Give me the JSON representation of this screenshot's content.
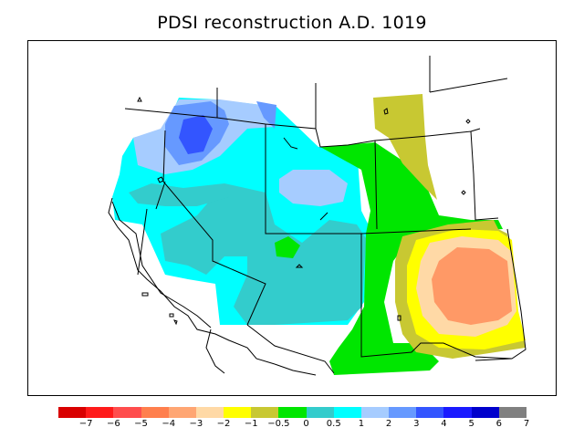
{
  "title": "PDSI reconstruction A.D. 1019",
  "colorbar": {
    "colors": [
      "#d90000",
      "#ff1a1a",
      "#ff4d4d",
      "#ff7f4d",
      "#ffa673",
      "#ffd9a6",
      "#ffff00",
      "#c8c832",
      "#00e600",
      "#33cccc",
      "#00ffff",
      "#a6ccff",
      "#6699ff",
      "#3355ff",
      "#1a1aff",
      "#0000cc",
      "#808080"
    ],
    "labels": [
      "−7",
      "−6",
      "−5",
      "−4",
      "−3",
      "−2",
      "−1",
      "−0.5",
      "0",
      "0.5",
      "1",
      "2",
      "3",
      "4",
      "5",
      "6",
      "7"
    ]
  },
  "map": {
    "colors": {
      "cyan": "#00ffff",
      "teal": "#33cccc",
      "green": "#00e600",
      "olive": "#c8c832",
      "yellow": "#ffff00",
      "peach": "#ffd9a6",
      "salmon": "#ffa673",
      "orange": "#ff9966",
      "lightblue": "#a6ccff",
      "medblue": "#6699ff",
      "blue": "#3355ff"
    }
  }
}
